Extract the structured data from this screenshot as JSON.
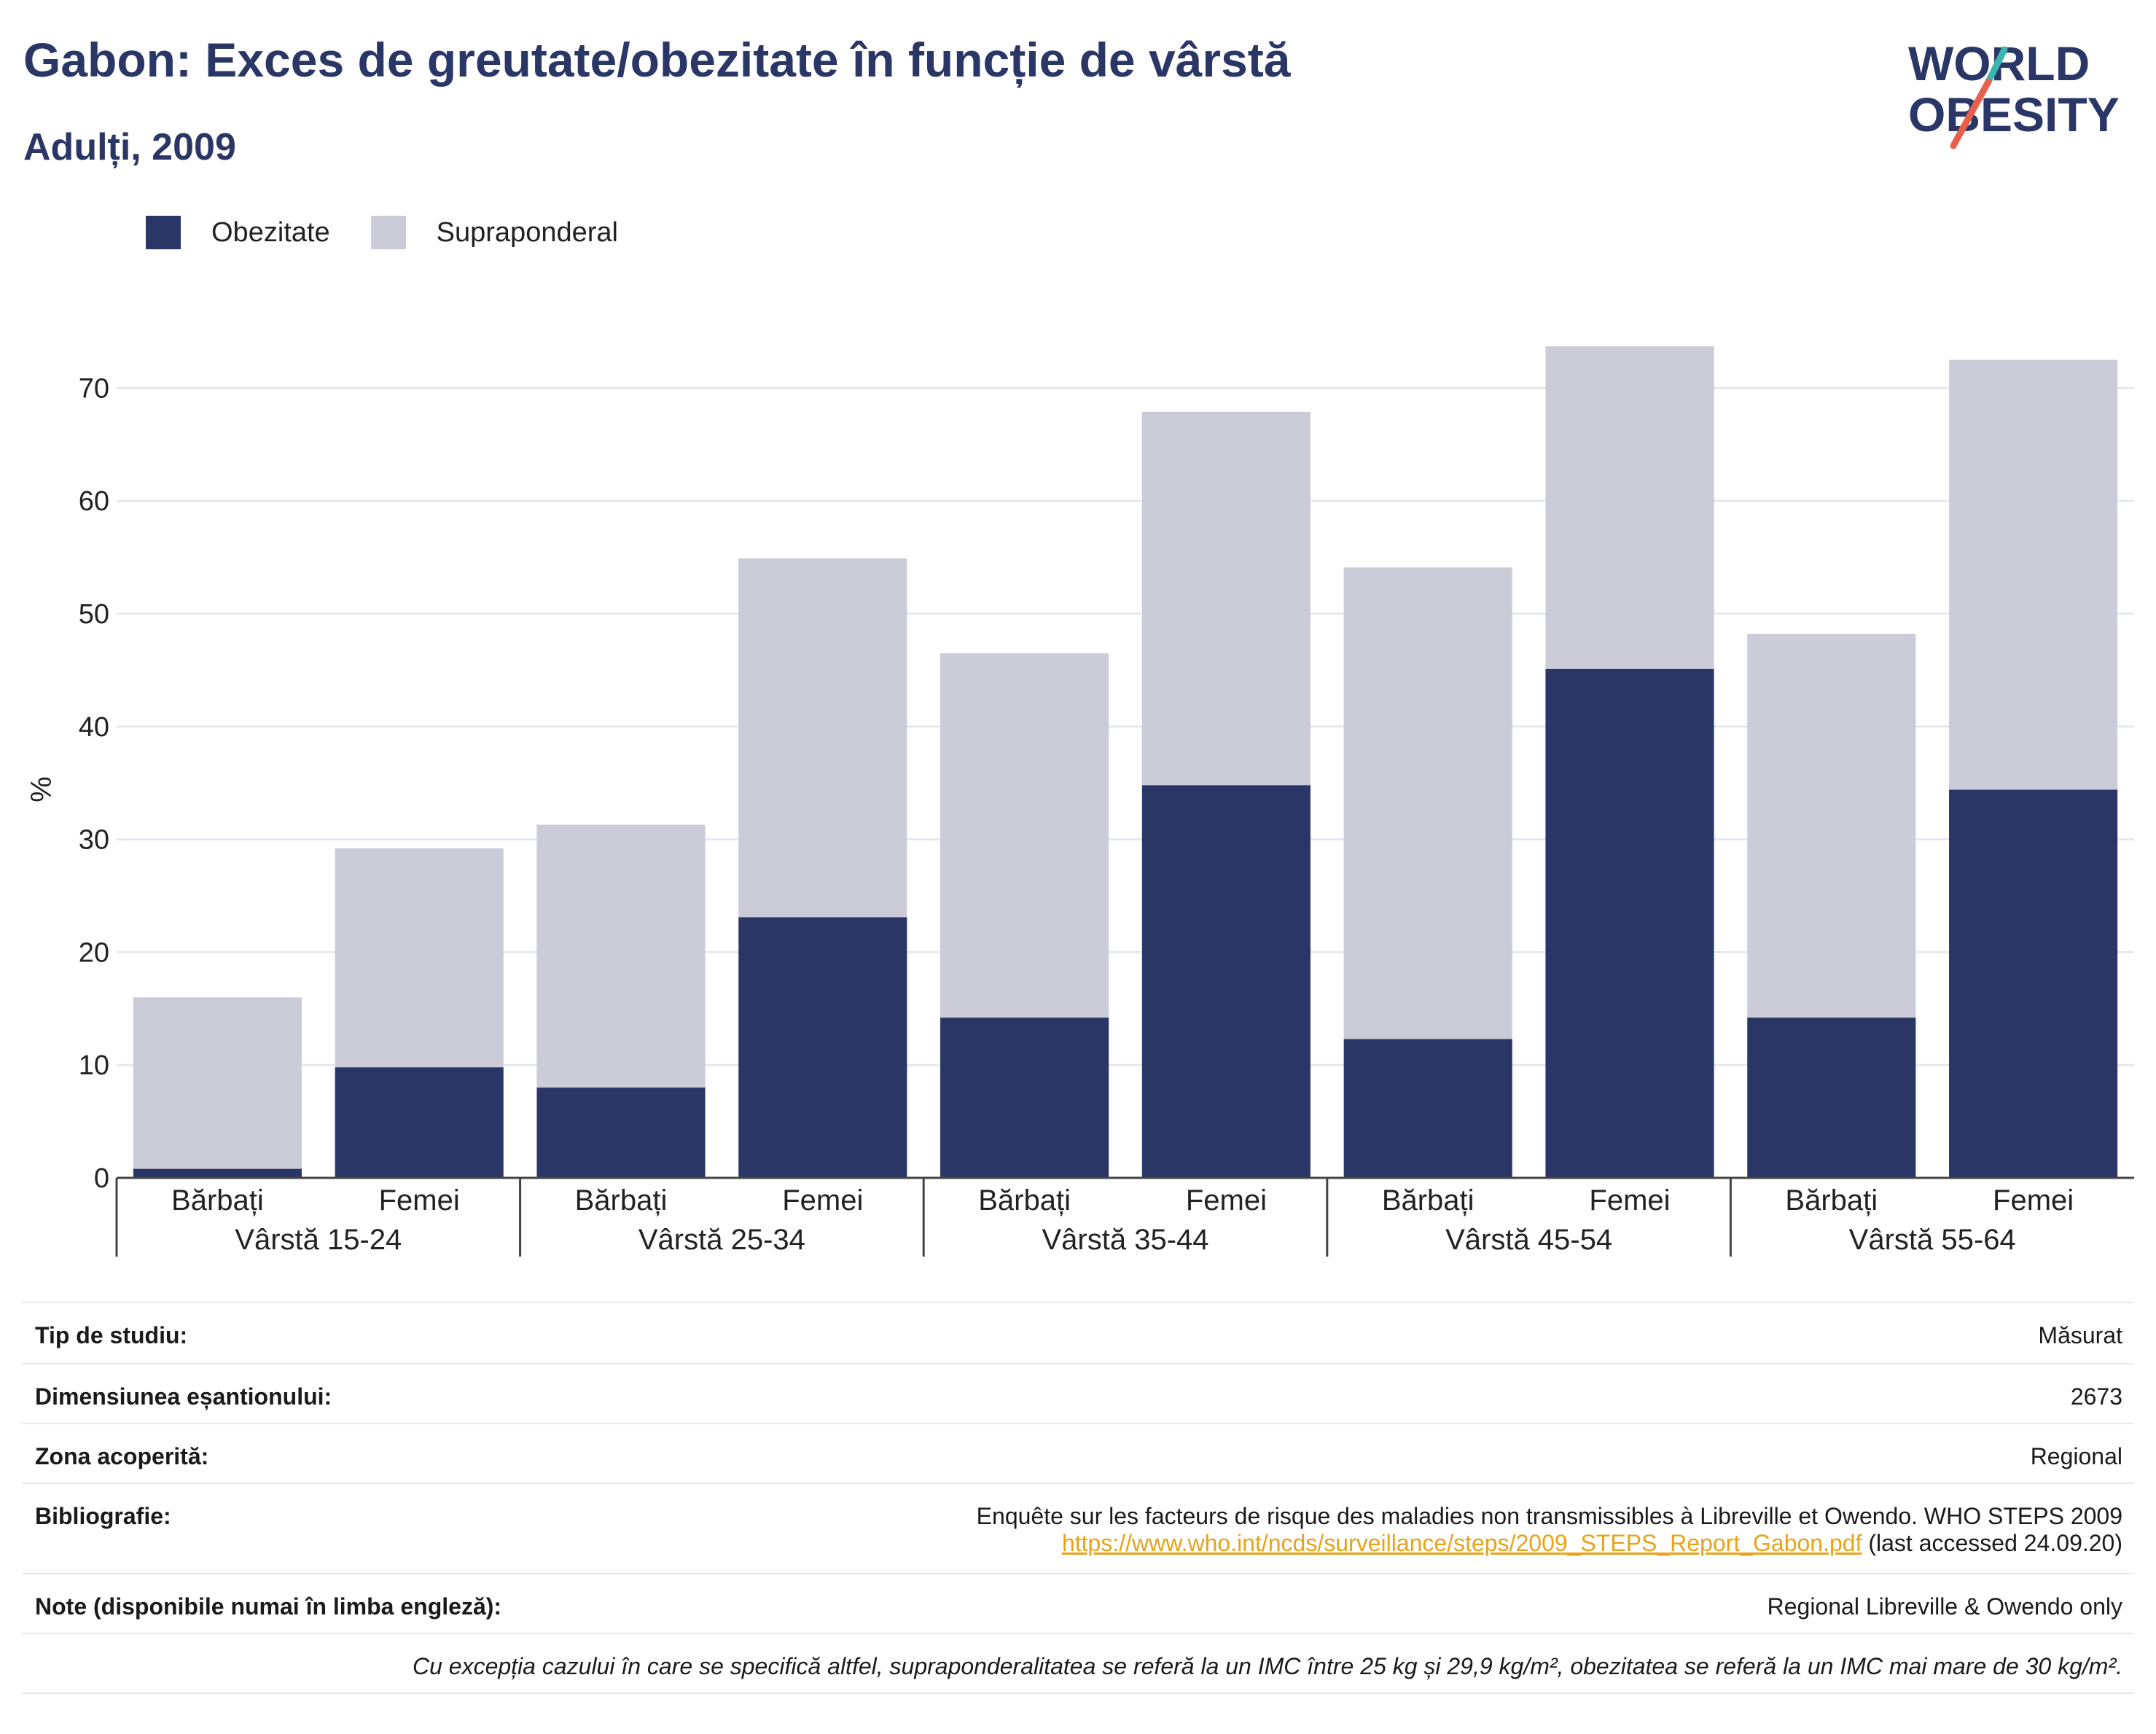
{
  "header": {
    "title": "Gabon: Exces de greutate/obezitate în funcție de vârstă",
    "subtitle": "Adulți, 2009"
  },
  "logo": {
    "line1": "WORLD",
    "line2": "OBESITY",
    "accent_color": "#3ab5b0",
    "slash_color": "#e8604c"
  },
  "colors": {
    "obesity": "#2a3766",
    "overweight": "#cbccd8",
    "axis": "#444444",
    "grid": "#e6e8ef"
  },
  "chart_data": {
    "type": "bar",
    "stacked": true,
    "title": "Gabon: Exces de greutate/obezitate în funcție de vârstă",
    "subtitle": "Adulți, 2009",
    "ylabel": "%",
    "ylim": [
      0,
      75
    ],
    "yticks": [
      0,
      10,
      20,
      30,
      40,
      50,
      60,
      70
    ],
    "grid": true,
    "legend_position": "top-left",
    "groups": [
      "Vârstă 15-24",
      "Vârstă 25-34",
      "Vârstă 35-44",
      "Vârstă 45-54",
      "Vârstă 55-64"
    ],
    "categories": [
      "Bărbați",
      "Femei",
      "Bărbați",
      "Femei",
      "Bărbați",
      "Femei",
      "Bărbați",
      "Femei",
      "Bărbați",
      "Femei"
    ],
    "series": [
      {
        "name": "Obezitate",
        "values": [
          0.8,
          9.8,
          8.0,
          23.1,
          14.2,
          34.8,
          12.3,
          45.1,
          14.2,
          34.4
        ]
      },
      {
        "name": "Supraponderal",
        "values": [
          15.2,
          19.4,
          23.3,
          31.8,
          32.3,
          33.1,
          41.8,
          28.6,
          34.0,
          38.1
        ]
      }
    ]
  },
  "info": {
    "study_type_label": "Tip de studiu:",
    "study_type_value": "Măsurat",
    "sample_size_label": "Dimensiunea eșantionului:",
    "sample_size_value": "2673",
    "area_label": "Zona acoperită:",
    "area_value": "Regional",
    "bibliography_label": "Bibliografie:",
    "bibliography_text": "Enquête sur les facteurs de risque des maladies non transmissibles à Libreville et Owendo. WHO STEPS 2009",
    "bibliography_link": "https://www.who.int/ncds/surveillance/steps/2009_STEPS_Report_Gabon.pdf",
    "bibliography_accessed": " (last accessed 24.09.20)",
    "notes_label": "Note (disponibile numai în limba engleză):",
    "notes_value": "Regional Libreville & Owendo only",
    "footnote": "Cu excepția cazului în care se specifică altfel, supraponderalitatea se referă la un IMC între 25 kg și 29,9 kg/m², obezitatea se referă la un IMC mai mare de 30 kg/m²."
  }
}
